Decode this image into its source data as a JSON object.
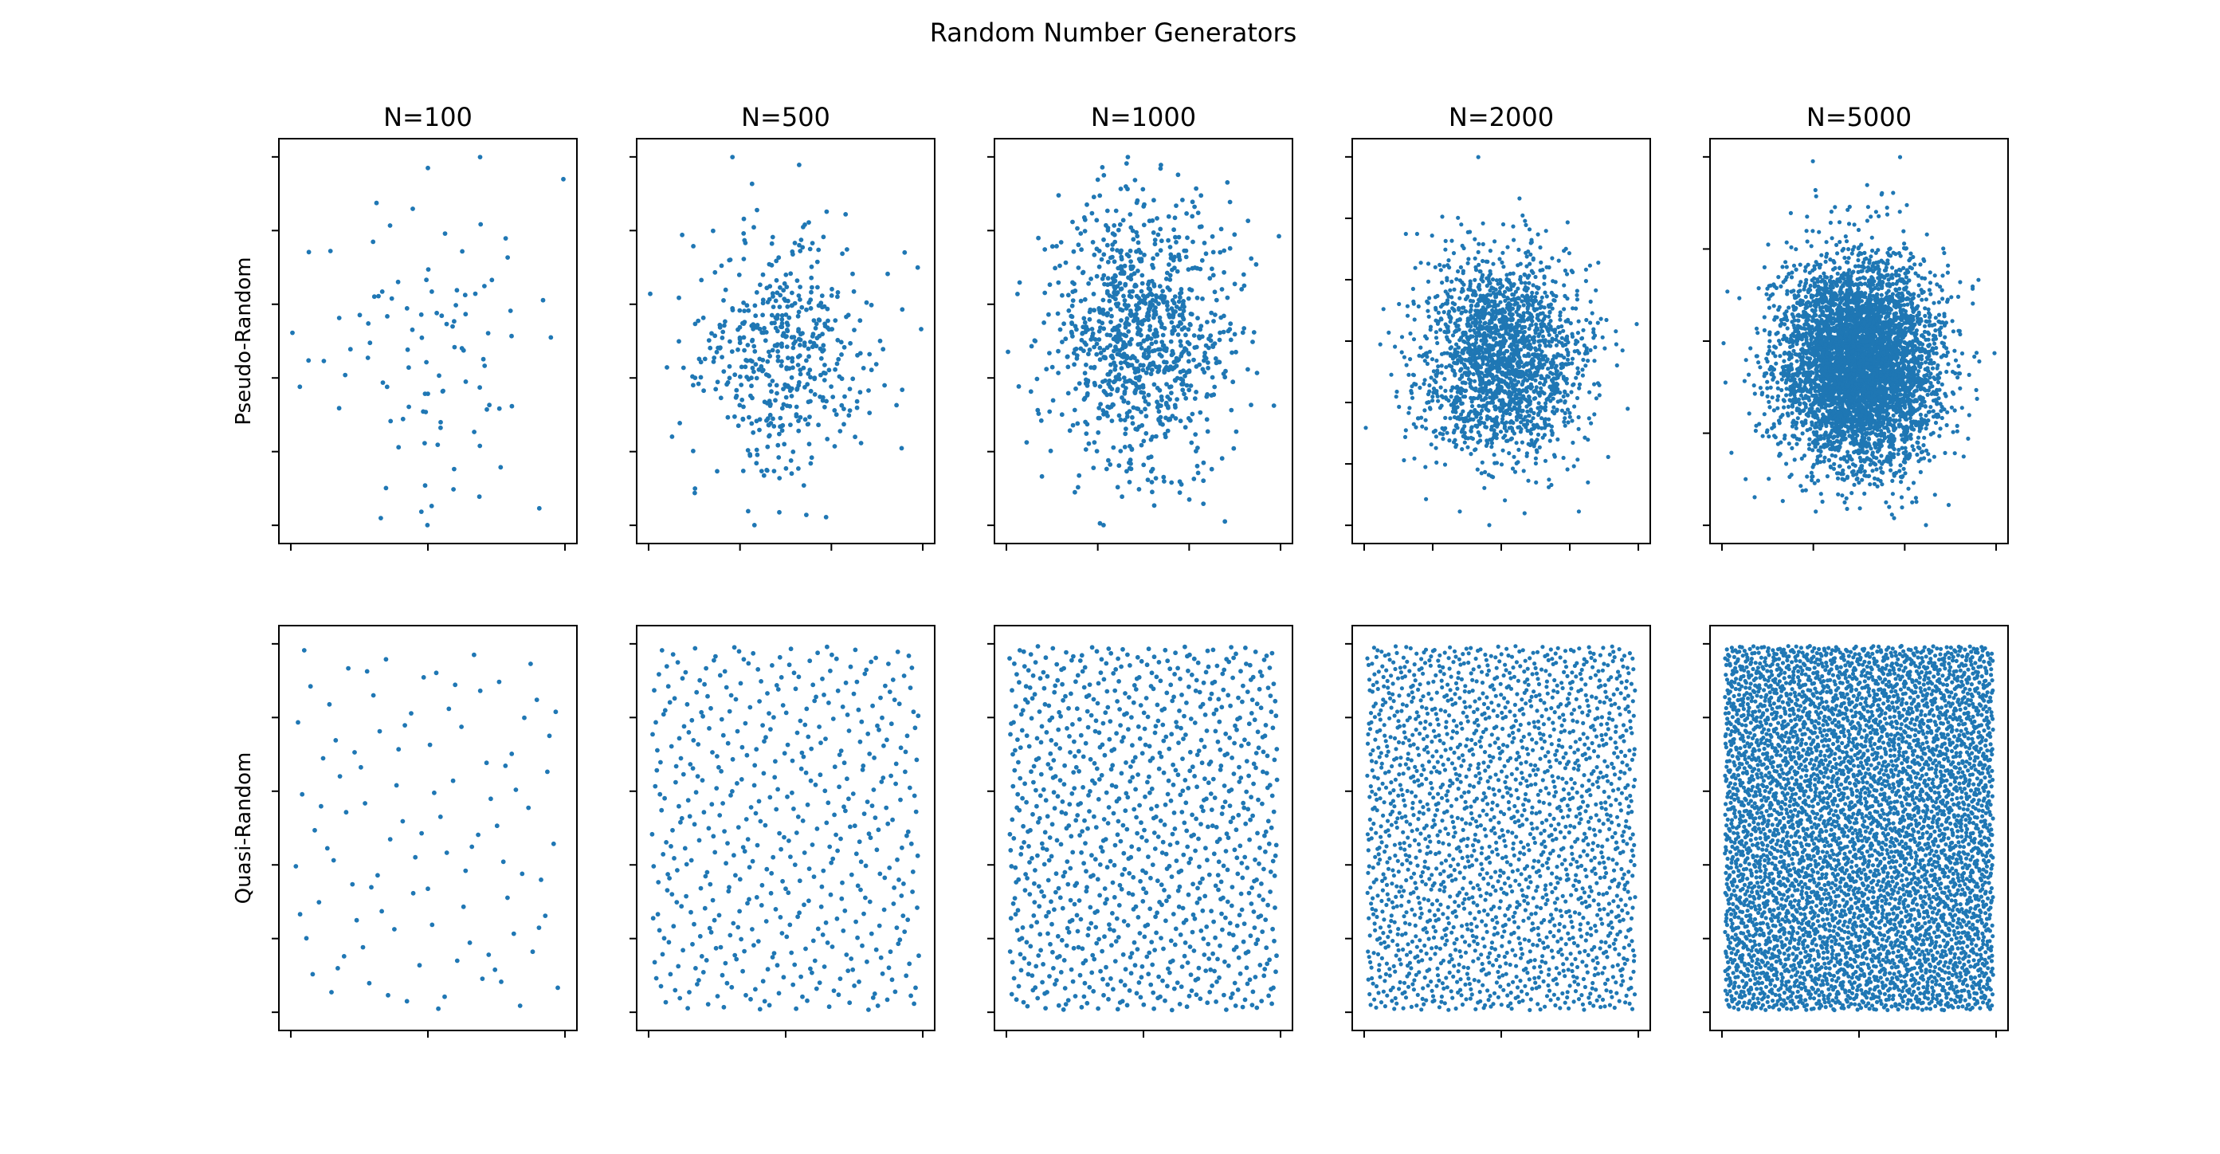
{
  "chart_data": {
    "type": "scatter",
    "title": "Random Number Generators",
    "layout": "2 rows x 5 columns grid of scatter plots",
    "axis_tick_labels": "hidden",
    "marker_color": "#1f77b4",
    "column_titles": [
      "N=100",
      "N=500",
      "N=1000",
      "N=2000",
      "N=5000"
    ],
    "row_labels": [
      "Pseudo-Random",
      "Quasi-Random"
    ],
    "sample_sizes": [
      100,
      500,
      1000,
      2000,
      5000
    ],
    "rows": [
      {
        "ylabel": "Pseudo-Random",
        "generator": "pseudo-random (normally distributed cloud)",
        "subplots": [
          {
            "title": "N=100",
            "n_points": 100,
            "distribution": "gaussian",
            "x_ticks": 3,
            "y_ticks": 6
          },
          {
            "title": "N=500",
            "n_points": 500,
            "distribution": "gaussian",
            "x_ticks": 4,
            "y_ticks": 6
          },
          {
            "title": "N=1000",
            "n_points": 1000,
            "distribution": "gaussian",
            "x_ticks": 4,
            "y_ticks": 6
          },
          {
            "title": "N=2000",
            "n_points": 2000,
            "distribution": "gaussian",
            "x_ticks": 5,
            "y_ticks": 7
          },
          {
            "title": "N=5000",
            "n_points": 5000,
            "distribution": "gaussian",
            "x_ticks": 4,
            "y_ticks": 5
          }
        ]
      },
      {
        "ylabel": "Quasi-Random",
        "generator": "quasi-random (low-discrepancy sequence)",
        "subplots": [
          {
            "title": "N=100",
            "n_points": 100,
            "distribution": "uniform low-discrepancy",
            "x_ticks": 3,
            "y_ticks": 6
          },
          {
            "title": "N=500",
            "n_points": 500,
            "distribution": "uniform low-discrepancy",
            "x_ticks": 3,
            "y_ticks": 6
          },
          {
            "title": "N=1000",
            "n_points": 1000,
            "distribution": "uniform low-discrepancy",
            "x_ticks": 3,
            "y_ticks": 6
          },
          {
            "title": "N=2000",
            "n_points": 2000,
            "distribution": "uniform low-discrepancy",
            "x_ticks": 3,
            "y_ticks": 6
          },
          {
            "title": "N=5000",
            "n_points": 5000,
            "distribution": "uniform low-discrepancy",
            "x_ticks": 3,
            "y_ticks": 6
          }
        ]
      }
    ]
  }
}
